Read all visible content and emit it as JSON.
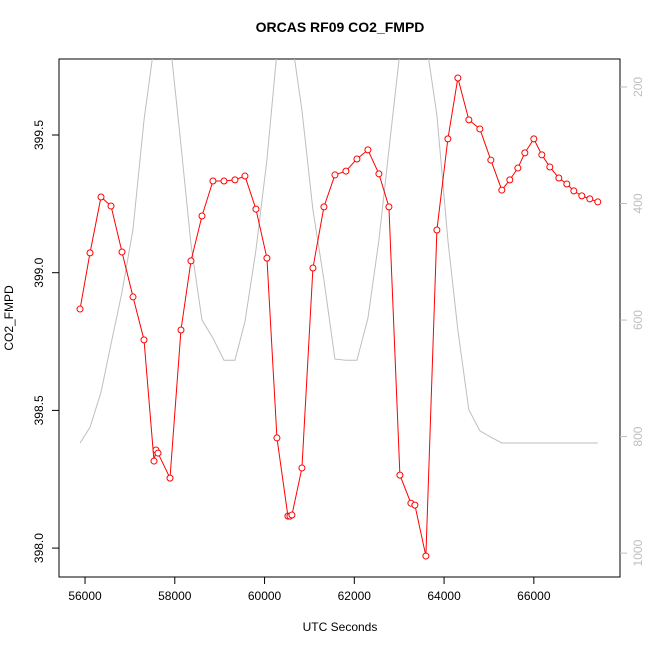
{
  "chart_data": {
    "type": "line",
    "title": "ORCAS RF09 CO2_FMPD",
    "xlabel": "UTC Seconds",
    "ylabel": "CO2_FMPD",
    "x": [
      55889,
      56111,
      56356,
      56579,
      56824,
      57069,
      57314,
      57537,
      57581,
      57626,
      57893,
      58138,
      58361,
      58606,
      58850,
      59096,
      59340,
      59563,
      59808,
      60053,
      60276,
      60521,
      60566,
      60610,
      60833,
      61078,
      61323,
      61568,
      61813,
      62058,
      62303,
      62548,
      62771,
      63016,
      63261,
      63350,
      63595,
      63840,
      64085,
      64307,
      64552,
      64797,
      65042,
      65287,
      65465,
      65644,
      65800,
      66000,
      66178,
      66356,
      66557,
      66735,
      66891,
      67069,
      67247,
      67425
    ],
    "series": [
      {
        "color": "#ff0000",
        "markers": true,
        "values": [
          398.868,
          399.072,
          399.275,
          399.242,
          399.075,
          398.912,
          398.756,
          398.316,
          398.356,
          398.345,
          398.254,
          398.792,
          399.043,
          399.206,
          399.333,
          399.333,
          399.337,
          399.351,
          399.231,
          399.053,
          398.4,
          398.116,
          398.116,
          398.12,
          398.291,
          399.017,
          399.239,
          399.355,
          399.369,
          399.413,
          399.446,
          399.359,
          399.239,
          398.265,
          398.163,
          398.156,
          397.971,
          399.155,
          399.486,
          399.707,
          399.555,
          399.522,
          399.409,
          399.3,
          399.337,
          399.38,
          399.435,
          399.486,
          399.428,
          399.384,
          399.344,
          399.322,
          399.297,
          399.279,
          399.268,
          399.257
        ]
      },
      {
        "color": "#bebebe",
        "markers": false,
        "axis": "y2",
        "values": [
          811,
          784,
          724,
          641,
          552,
          444,
          257,
          130,
          120,
          120,
          120,
          300,
          470,
          600,
          631,
          669,
          669,
          603,
          480,
          325,
          140,
          120,
          120,
          120,
          240,
          411,
          531,
          667,
          669,
          669,
          597,
          463,
          308,
          140,
          120,
          120,
          120,
          248,
          463,
          617,
          754,
          790,
          801,
          811,
          811,
          811,
          811,
          811,
          811,
          811,
          811,
          811,
          811,
          811,
          811,
          811
        ]
      }
    ],
    "xlim": [
      55420,
      67920
    ],
    "xticks": [
      56000,
      58000,
      60000,
      62000,
      64000,
      66000
    ],
    "ylim": [
      397.895,
      399.776
    ],
    "yticks": [
      {
        "value": 398,
        "label": "398.0"
      },
      398.5,
      {
        "value": 399,
        "label": "399.0"
      },
      399.5
    ],
    "y2lim": [
      1041,
      152
    ],
    "y2ticks": [
      200,
      400,
      600,
      800,
      1000
    ],
    "y2color": "#bebebe"
  }
}
